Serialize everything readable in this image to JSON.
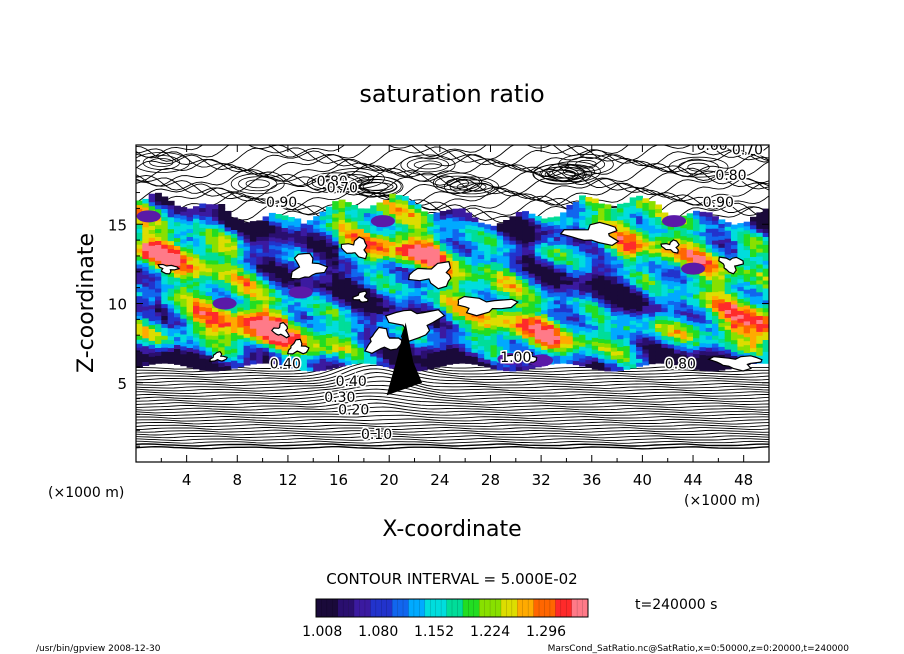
{
  "chart_data": {
    "type": "heatmap",
    "title": "saturation ratio",
    "xlabel": "X-coordinate",
    "ylabel": "Z-coordinate",
    "x_unit": "(×1000 m)",
    "y_unit": "(×1000 m)",
    "xlim": [
      0,
      50
    ],
    "ylim": [
      0,
      20
    ],
    "x_ticks": [
      4,
      8,
      12,
      16,
      20,
      24,
      28,
      32,
      36,
      40,
      44,
      48
    ],
    "y_ticks": [
      5,
      10,
      15
    ],
    "contour_interval_text": "CONTOUR INTERVAL = 5.000E-02",
    "time_label": "t=240000 s",
    "colorbar": {
      "min": 1.0,
      "max": 1.35,
      "tick_labels": [
        "1.008",
        "1.080",
        "1.152",
        "1.224",
        "1.296"
      ],
      "colors": [
        "#1a0a3a",
        "#2a0f6f",
        "#3b1aa0",
        "#2233cc",
        "#1166ee",
        "#00aaff",
        "#00dddd",
        "#00dd99",
        "#22dd22",
        "#88e000",
        "#dddd00",
        "#ffaa00",
        "#ff6600",
        "#ff2a2a",
        "#ff7a88"
      ]
    },
    "contour_labels": [
      {
        "text": "0.10",
        "x": 19.0,
        "y": 1.45
      },
      {
        "text": "0.20",
        "x": 17.2,
        "y": 3.0
      },
      {
        "text": "0.30",
        "x": 16.1,
        "y": 3.8
      },
      {
        "text": "0.40",
        "x": 17.0,
        "y": 4.8
      },
      {
        "text": "0.40",
        "x": 11.8,
        "y": 5.9
      },
      {
        "text": "0.60",
        "x": 45.5,
        "y": 19.7
      },
      {
        "text": "0.70",
        "x": 48.3,
        "y": 19.4
      },
      {
        "text": "0.80",
        "x": 47.0,
        "y": 17.8
      },
      {
        "text": "0.90",
        "x": 46.0,
        "y": 16.1
      },
      {
        "text": "0.80",
        "x": 15.5,
        "y": 17.4
      },
      {
        "text": "0.70",
        "x": 16.3,
        "y": 17.0
      },
      {
        "text": "0.90",
        "x": 11.5,
        "y": 16.1
      },
      {
        "text": "1.00",
        "x": 30.0,
        "y": 6.3
      },
      {
        "text": "0.80",
        "x": 43.0,
        "y": 5.9
      }
    ],
    "footer_left": "/usr/bin/gpview   2008-12-30",
    "footer_right": "MarsCond_SatRatio.nc@SatRatio,x=0:50000,z=0:20000,t=240000"
  }
}
